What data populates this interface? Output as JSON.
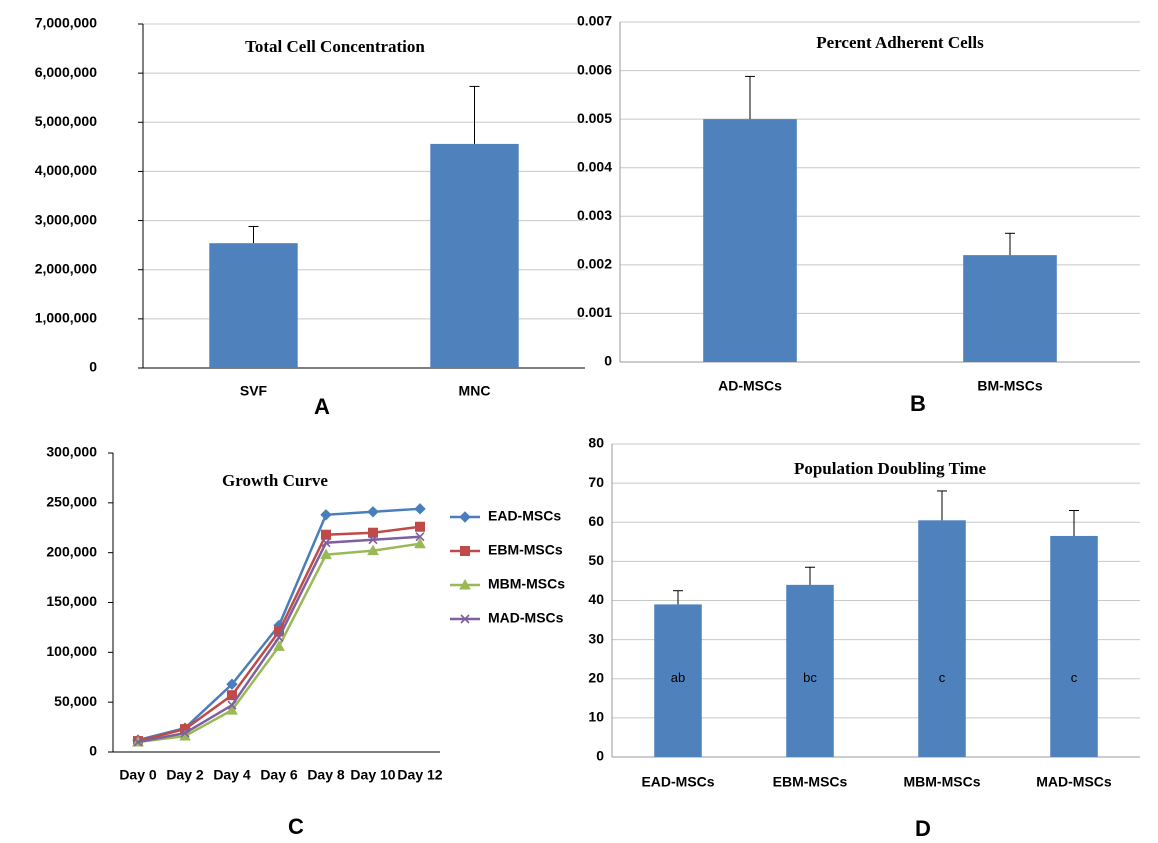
{
  "chart_data": [
    {
      "type": "bar",
      "panel": "A",
      "title": "Total Cell Concentration",
      "categories": [
        "SVF",
        "MNC"
      ],
      "values": [
        2540000,
        4560000
      ],
      "errors": [
        340000,
        1170000
      ],
      "color": "#4f81bd",
      "ylim": [
        0,
        7000000
      ],
      "yticks": [
        0,
        {
          "value": 1000000,
          "label": "1,000,000"
        },
        {
          "value": 2000000,
          "label": "2,000,000"
        },
        {
          "value": 3000000,
          "label": "3,000,000"
        },
        {
          "value": 4000000,
          "label": "4,000,000"
        },
        {
          "value": 5000000,
          "label": "5,000,000"
        },
        {
          "value": 6000000,
          "label": "6,000,000"
        },
        {
          "value": 7000000,
          "label": "7,000,000"
        }
      ],
      "grid": true
    },
    {
      "type": "bar",
      "panel": "B",
      "title": "Percent Adherent Cells",
      "categories": [
        "AD-MSCs",
        "BM-MSCs"
      ],
      "values": [
        0.005,
        0.0022
      ],
      "errors": [
        0.00088,
        0.00045
      ],
      "color": "#4f81bd",
      "ylim": [
        0,
        0.007
      ],
      "yticks": [
        0,
        0.001,
        0.002,
        0.003,
        0.004,
        0.005,
        0.006,
        0.007
      ],
      "grid": true
    },
    {
      "type": "line",
      "panel": "C",
      "title": "Growth Curve",
      "categories": [
        "Day 0",
        "Day 2",
        "Day 4",
        "Day 6",
        "Day 8",
        "Day 10",
        "Day 12"
      ],
      "series": [
        {
          "name": "EAD-MSCs",
          "color": "#4a7ebb",
          "marker": "diamond",
          "values": [
            12000,
            24000,
            68000,
            127000,
            238000,
            241000,
            244000
          ]
        },
        {
          "name": "EBM-MSCs",
          "color": "#be4b48",
          "marker": "square",
          "values": [
            11000,
            23000,
            57000,
            121000,
            218000,
            220000,
            226000
          ]
        },
        {
          "name": "MBM-MSCs",
          "color": "#98b954",
          "marker": "triangle",
          "values": [
            10000,
            16000,
            42000,
            106000,
            198000,
            202000,
            209000
          ]
        },
        {
          "name": "MAD-MSCs",
          "color": "#7d60a0",
          "marker": "x",
          "values": [
            10000,
            19000,
            47000,
            115000,
            210000,
            213000,
            216000
          ]
        }
      ],
      "ylim": [
        0,
        300000
      ],
      "yticks": [
        0,
        {
          "value": 50000,
          "label": "50,000"
        },
        {
          "value": 100000,
          "label": "100,000"
        },
        {
          "value": 150000,
          "label": "150,000"
        },
        {
          "value": 200000,
          "label": "200,000"
        },
        {
          "value": 250000,
          "label": "250,000"
        },
        {
          "value": 300000,
          "label": "300,000"
        }
      ],
      "grid": false,
      "legend": "right"
    },
    {
      "type": "bar",
      "panel": "D",
      "title": "Population Doubling Time",
      "categories": [
        "EAD-MSCs",
        "EBM-MSCs",
        "MBM-MSCs",
        "MAD-MSCs"
      ],
      "values": [
        39,
        44,
        60.5,
        56.5
      ],
      "errors": [
        3.5,
        4.5,
        7.5,
        6.5
      ],
      "bar_labels": [
        "ab",
        "bc",
        "c",
        "c"
      ],
      "color": "#4f81bd",
      "ylim": [
        0,
        80
      ],
      "yticks": [
        0,
        10,
        20,
        30,
        40,
        50,
        60,
        70,
        80
      ],
      "grid": true
    }
  ]
}
